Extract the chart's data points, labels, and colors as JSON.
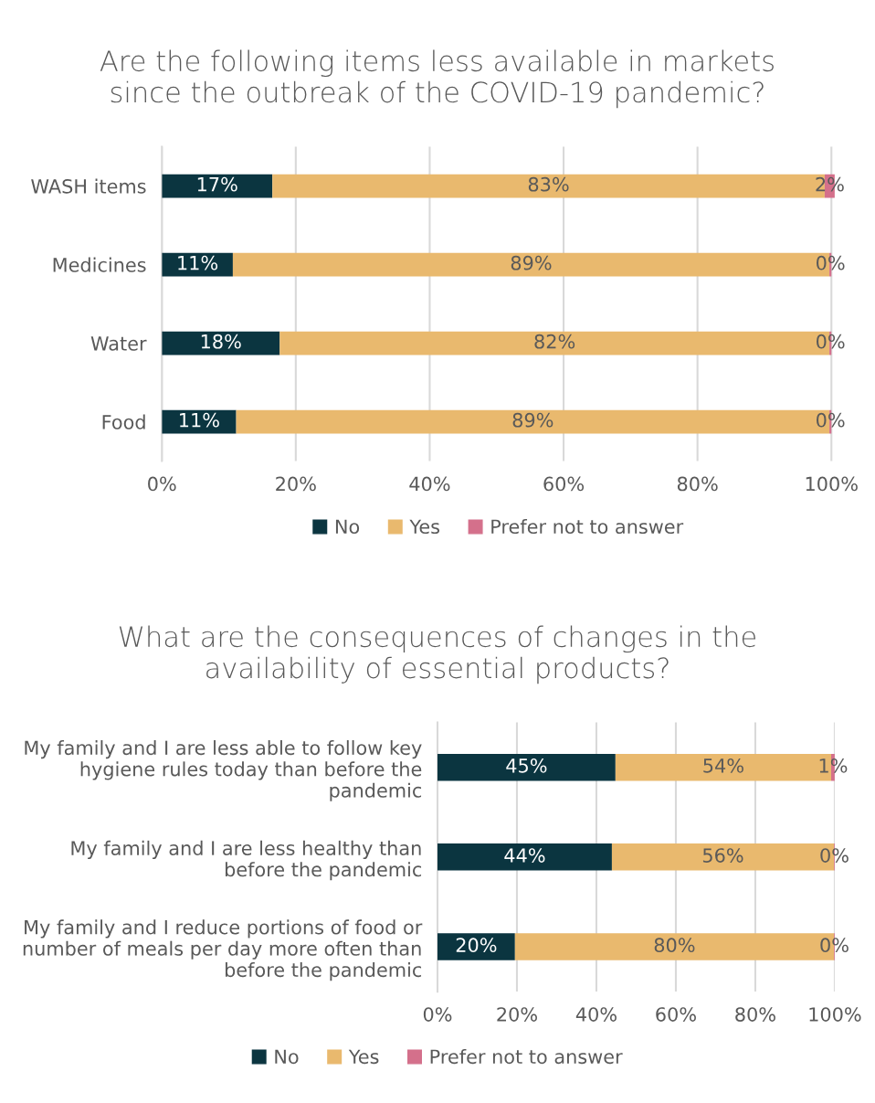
{
  "chart_data": [
    {
      "type": "bar",
      "orientation": "horizontal",
      "stacked": true,
      "title": "Are the following items less available in markets\nsince the outbreak of the COVID-19 pandemic?",
      "categories": [
        "WASH items",
        "Medicines",
        "Water",
        "Food"
      ],
      "xlim": [
        0,
        100.5
      ],
      "series": [
        {
          "name": "No",
          "color": "#0b3540",
          "values": [
            16.5,
            10.6,
            17.6,
            11.1
          ],
          "value_labels": [
            "17%",
            "11%",
            "18%",
            "11%"
          ]
        },
        {
          "name": "Yes",
          "color": "#e9b96e",
          "values": [
            82.5,
            89.1,
            82.1,
            88.6
          ],
          "value_labels": [
            "83%",
            "89%",
            "82%",
            "89%"
          ]
        },
        {
          "name": "Prefer not to answer",
          "color": "#d4708b",
          "values": [
            1.5,
            0.3,
            0.3,
            0.3
          ],
          "value_labels": [
            "2%",
            "0%",
            "0%",
            "0%"
          ]
        }
      ],
      "xticks": [
        {
          "value": 0,
          "label": "0%"
        },
        {
          "value": 20,
          "label": "20%"
        },
        {
          "value": 40,
          "label": "40%"
        },
        {
          "value": 60,
          "label": "60%"
        },
        {
          "value": 80,
          "label": "80%"
        },
        {
          "value": 100,
          "label": "100%"
        }
      ],
      "grid": "x",
      "legend": "bottom"
    },
    {
      "type": "bar",
      "orientation": "horizontal",
      "stacked": true,
      "title": "What are the consequences of changes in the\navailability of essential products?",
      "categories": [
        "My family and I are less able to follow key\nhygiene rules today than before the\npandemic",
        "My family and I are less healthy than\nbefore the pandemic",
        "My family and I reduce portions of food or\nnumber of meals per day more often than\nbefore the pandemic"
      ],
      "series": [
        {
          "name": "No",
          "color": "#0b3540",
          "values": [
            44.8,
            43.9,
            19.5
          ],
          "value_labels": [
            "45%",
            "44%",
            "20%"
          ]
        },
        {
          "name": "Yes",
          "color": "#e9b96e",
          "values": [
            54.3,
            55.9,
            80.3
          ],
          "value_labels": [
            "54%",
            "56%",
            "80%"
          ]
        },
        {
          "name": "Prefer not to answer",
          "color": "#d4708b",
          "values": [
            0.9,
            0.2,
            0.2
          ],
          "value_labels": [
            "1%",
            "0%",
            "0%"
          ]
        }
      ],
      "xlim": [
        0,
        100
      ],
      "xticks": [
        {
          "value": 0,
          "label": "0%"
        },
        {
          "value": 20,
          "label": "20%"
        },
        {
          "value": 40,
          "label": "40%"
        },
        {
          "value": 60,
          "label": "60%"
        },
        {
          "value": 80,
          "label": "80%"
        },
        {
          "value": 100,
          "label": "100%"
        }
      ],
      "grid": "x",
      "legend": "bottom"
    }
  ]
}
